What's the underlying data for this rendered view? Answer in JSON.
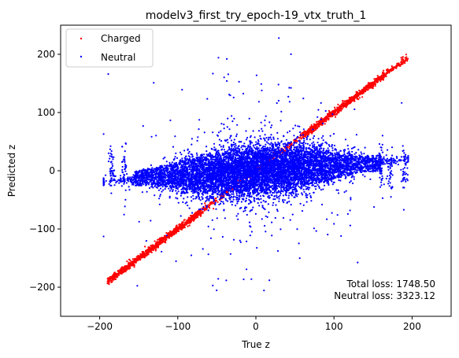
{
  "chart_data": {
    "type": "scatter",
    "title": "modelv3_first_try_epoch-19_vtx_truth_1",
    "xlabel": "True z",
    "ylabel": "Predicted z",
    "xlim": [
      -250,
      250
    ],
    "ylim": [
      -250,
      250
    ],
    "xticks": [
      -200,
      -100,
      0,
      100,
      200
    ],
    "yticks": [
      -200,
      -100,
      0,
      100,
      200
    ],
    "xtick_labels": [
      "−200",
      "−100",
      "0",
      "100",
      "200"
    ],
    "ytick_labels": [
      "−200",
      "−100",
      "0",
      "100",
      "200"
    ],
    "grid": false,
    "legend_position": "top-left",
    "series": [
      {
        "name": "Charged",
        "color": "#ff0000",
        "marker": "dot",
        "description_values": {
          "relation": "y approximately equals x",
          "x_range": [
            -190,
            195
          ],
          "y_range": [
            -195,
            200
          ]
        }
      },
      {
        "name": "Neutral",
        "color": "#0000ff",
        "marker": "dot",
        "description_values": {
          "core_x_range": [
            -160,
            165
          ],
          "core_y_range": [
            -60,
            60
          ],
          "x_range": [
            -195,
            195
          ],
          "y_range": [
            -250,
            240
          ]
        }
      }
    ],
    "annotations": [
      "Total loss: 1748.50",
      "Neutral loss: 3323.12"
    ]
  }
}
